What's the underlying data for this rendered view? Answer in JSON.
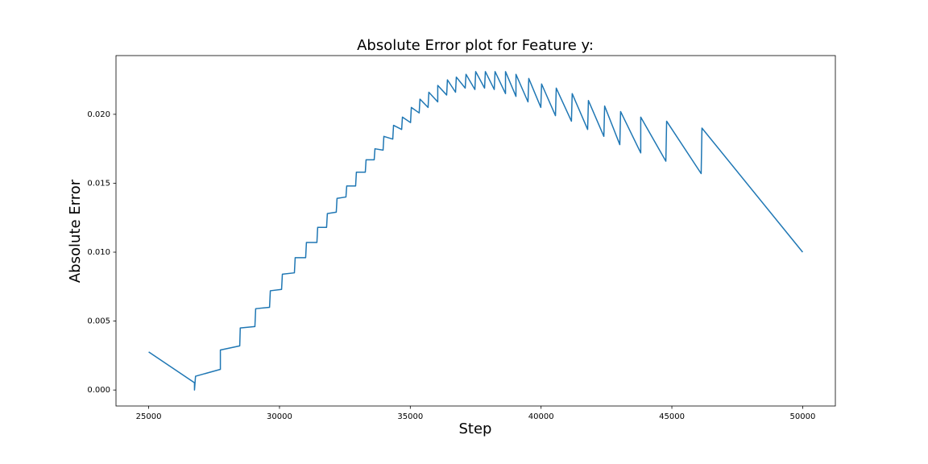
{
  "chart_data": {
    "type": "line",
    "title": "Absolute Error plot for Feature y:",
    "x_label": "Step",
    "y_label": "Absolute Error",
    "x": [
      25000,
      26750,
      26750,
      26790,
      27740,
      27740,
      28480,
      28500,
      29060,
      29090,
      29620,
      29650,
      30080,
      30110,
      30570,
      30600,
      31000,
      31030,
      31430,
      31460,
      31800,
      31830,
      32170,
      32200,
      32540,
      32570,
      32910,
      32940,
      33280,
      33310,
      33620,
      33650,
      33960,
      33990,
      34330,
      34360,
      34670,
      34700,
      35010,
      35040,
      35340,
      35370,
      35680,
      35710,
      36050,
      36050,
      36390,
      36420,
      36730,
      36760,
      37100,
      37130,
      37470,
      37500,
      37840,
      37870,
      38210,
      38240,
      38640,
      38640,
      39040,
      39040,
      39500,
      39530,
      39990,
      40020,
      40550,
      40580,
      41160,
      41190,
      41780,
      41810,
      42400,
      42430,
      43010,
      43040,
      43810,
      43810,
      44770,
      44800,
      46120,
      46150,
      50000
    ],
    "series": [
      {
        "name": "y",
        "color": "#1f77b4",
        "values": [
          0.00276,
          0.00053,
          0.0,
          0.001,
          0.0015,
          0.0029,
          0.0032,
          0.0045,
          0.0046,
          0.0059,
          0.006,
          0.0072,
          0.0073,
          0.0084,
          0.0085,
          0.0096,
          0.0096,
          0.0107,
          0.0107,
          0.0118,
          0.0118,
          0.0128,
          0.0129,
          0.0139,
          0.014,
          0.0148,
          0.0148,
          0.0158,
          0.0158,
          0.0167,
          0.0167,
          0.0175,
          0.0174,
          0.0184,
          0.0182,
          0.0192,
          0.0189,
          0.0198,
          0.0194,
          0.0205,
          0.0201,
          0.0211,
          0.0205,
          0.0216,
          0.0209,
          0.0221,
          0.0214,
          0.0225,
          0.0216,
          0.0227,
          0.0219,
          0.0229,
          0.0218,
          0.0231,
          0.0219,
          0.0231,
          0.0218,
          0.0231,
          0.0215,
          0.0231,
          0.0213,
          0.0229,
          0.0209,
          0.0226,
          0.0205,
          0.0222,
          0.0199,
          0.0219,
          0.0195,
          0.0215,
          0.0189,
          0.021,
          0.0184,
          0.0206,
          0.0178,
          0.0202,
          0.0172,
          0.0198,
          0.0166,
          0.0195,
          0.0157,
          0.019,
          0.01
        ]
      }
    ],
    "xlim": [
      23750,
      51250
    ],
    "ylim": [
      -0.00116,
      0.02426
    ],
    "xticks": [
      25000,
      30000,
      35000,
      40000,
      45000,
      50000
    ],
    "yticks": [
      {
        "value": 0,
        "label": "0.000"
      },
      {
        "value": 0.005,
        "label": "0.005"
      },
      {
        "value": 0.01,
        "label": "0.010"
      },
      {
        "value": 0.015,
        "label": "0.015"
      },
      {
        "value": 0.02,
        "label": "0.020"
      }
    ]
  }
}
